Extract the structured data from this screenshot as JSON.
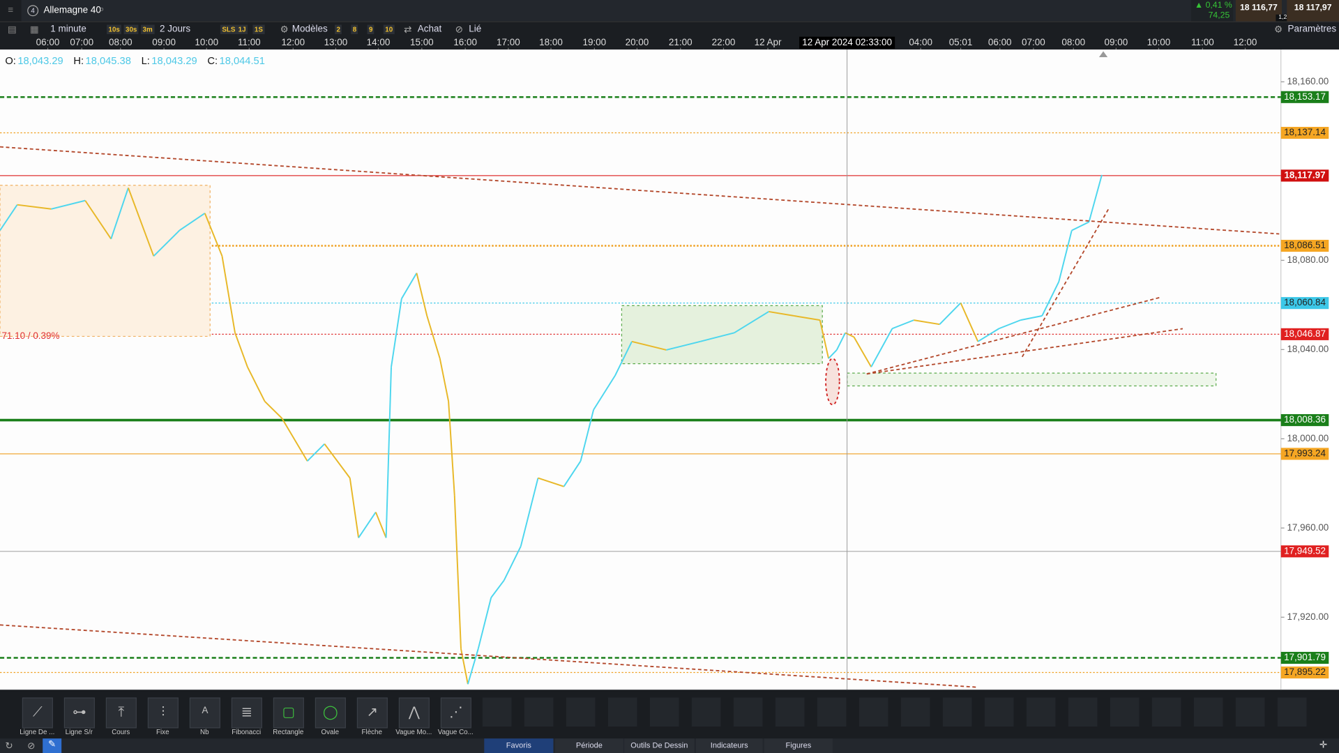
{
  "header": {
    "instrument_number": "4",
    "instrument": "Allemagne 40",
    "change_pct": "0,41 %",
    "change_pts": "74,25",
    "bid": "18 116,77",
    "ask": "18 117,97",
    "spread": "1,20"
  },
  "toolbar": {
    "interval": "1 minute",
    "quick_intervals": [
      "10s",
      "30s",
      "3m"
    ],
    "period": "2 Jours",
    "order_buttons": [
      "SLS",
      "1J",
      "1S"
    ],
    "templates": "Modèles",
    "template_slots": [
      "2",
      "8",
      "9",
      "10"
    ],
    "buy": "Achat",
    "link": "Lié",
    "settings": "Paramètres"
  },
  "ohlc": [
    {
      "label": "O:",
      "value": "18,043.29"
    },
    {
      "label": "H:",
      "value": "18,045.38"
    },
    {
      "label": "L:",
      "value": "18,043.29"
    },
    {
      "label": "C:",
      "value": "18,044.51"
    }
  ],
  "chart_data": {
    "type": "line",
    "annotation": "71.10 / 0.39%",
    "x": [
      0,
      0.4,
      1.19,
      1.98,
      2.58,
      2.98,
      3.57,
      4.17,
      4.76,
      5.16,
      5.46,
      5.75,
      6.15,
      6.55,
      7.14,
      7.54,
      8.13,
      8.33,
      8.73,
      8.97,
      9.09,
      9.33,
      9.68,
      9.92,
      10.22,
      10.42,
      10.56,
      10.71,
      10.87,
      11.11,
      11.41,
      11.71,
      12.1,
      12.5,
      13.1,
      13.49,
      13.79,
      14.29,
      14.68,
      15.48,
      16.27,
      17.06,
      17.86,
      18.45,
      19.05,
      19.25,
      19.44,
      19.64,
      19.84,
      20.24,
      20.73,
      21.23,
      21.83,
      22.32,
      22.72,
      23.21,
      23.71,
      24.21,
      24.6,
      24.9,
      25.3,
      25.6
    ],
    "values": [
      18093.4,
      18104.9,
      18103.0,
      18106.8,
      18089.6,
      18112.5,
      18081.9,
      18093.4,
      18101.1,
      18081.9,
      18047.5,
      18032.2,
      18016.8,
      18009.2,
      17990.0,
      17997.7,
      17982.4,
      17955.6,
      17967.1,
      17955.6,
      18032.2,
      18062.8,
      18074.3,
      18055.1,
      18036.0,
      18016.8,
      17974.7,
      17905.8,
      17890.0,
      17905.8,
      17928.8,
      17936.5,
      17951.8,
      17982.4,
      17978.6,
      17990.0,
      18013.0,
      18028.3,
      18043.6,
      18039.8,
      18043.6,
      18047.5,
      18057.0,
      18055.1,
      18053.2,
      18036.0,
      18039.8,
      18047.5,
      18045.6,
      18032.2,
      18049.4,
      18053.2,
      18051.3,
      18060.9,
      18043.6,
      18049.4,
      18053.2,
      18055.1,
      18070.4,
      18093.4,
      18097.2,
      18118.3
    ],
    "up_color": "#4dd6ee",
    "down_color": "#e8b828",
    "xlim": [
      0,
      29.76
    ],
    "xticks": [
      {
        "value": 1.11,
        "label": "06:00"
      },
      {
        "value": 1.9,
        "label": "07:00"
      },
      {
        "value": 2.8,
        "label": "08:00"
      },
      {
        "value": 3.81,
        "label": "09:00"
      },
      {
        "value": 4.8,
        "label": "10:00"
      },
      {
        "value": 5.79,
        "label": "11:00"
      },
      {
        "value": 6.81,
        "label": "12:00"
      },
      {
        "value": 7.8,
        "label": "13:00"
      },
      {
        "value": 8.79,
        "label": "14:00"
      },
      {
        "value": 9.8,
        "label": "15:00"
      },
      {
        "value": 10.81,
        "label": "16:00"
      },
      {
        "value": 11.81,
        "label": "17:00"
      },
      {
        "value": 12.8,
        "label": "18:00"
      },
      {
        "value": 13.81,
        "label": "19:00"
      },
      {
        "value": 14.8,
        "label": "20:00"
      },
      {
        "value": 15.81,
        "label": "21:00"
      },
      {
        "value": 16.81,
        "label": "22:00"
      },
      {
        "value": 17.84,
        "label": "12 Apr"
      },
      {
        "value": 21.39,
        "label": "04:00"
      },
      {
        "value": 22.32,
        "label": "05:01"
      },
      {
        "value": 23.23,
        "label": "06:00"
      },
      {
        "value": 24.01,
        "label": "07:00"
      },
      {
        "value": 24.94,
        "label": "08:00"
      },
      {
        "value": 25.93,
        "label": "09:00"
      },
      {
        "value": 26.92,
        "label": "10:00"
      },
      {
        "value": 27.94,
        "label": "11:00"
      },
      {
        "value": 28.93,
        "label": "12:00"
      }
    ],
    "ylim": [
      17888.6,
      18174.5
    ],
    "yticks": [
      {
        "value": 17920,
        "label": "17,920.00"
      },
      {
        "value": 17960,
        "label": "17,960.00"
      },
      {
        "value": 18000,
        "label": "18,000.00"
      },
      {
        "value": 18040,
        "label": "18,040.00"
      },
      {
        "value": 18080,
        "label": "18,080.00"
      },
      {
        "value": 18160,
        "label": "18,160.00"
      }
    ],
    "crosshair": {
      "x": 19.68,
      "label": "12 Apr 2024 02:33:00"
    },
    "levels": [
      {
        "value": 18153.17,
        "label": "18,153.17",
        "color": "#1a7f1a",
        "label_color": "#1a7f1a",
        "style": "dashed",
        "width": 2
      },
      {
        "value": 18137.14,
        "label": "18,137.14",
        "color": "#f0a020",
        "label_color": "#f5a623",
        "style": "dotted",
        "width": 1
      },
      {
        "value": 18117.97,
        "label": "18,117.97",
        "color": "#e03030",
        "label_color": "#d01010",
        "style": "solid",
        "width": 1
      },
      {
        "value": 18086.51,
        "label": "18,086.51",
        "color": "#f0a020",
        "label_color": "#f5a623",
        "style": "dotted",
        "width": 2
      },
      {
        "value": 18060.84,
        "label": "18,060.84",
        "color": "#3cc8e8",
        "label_color": "#3cc8e8",
        "style": "dotted",
        "width": 1
      },
      {
        "value": 18046.87,
        "label": "18,046.87",
        "color": "#e03030",
        "label_color": "#e02020",
        "style": "dotted",
        "width": 1
      },
      {
        "value": 18008.36,
        "label": "18,008.36",
        "color": "#1a7f1a",
        "label_color": "#1a7f1a",
        "style": "solid",
        "width": 3
      },
      {
        "value": 17993.24,
        "label": "17,993.24",
        "color": "#f0a020",
        "label_color": "#f5a623",
        "style": "solid",
        "width": 1
      },
      {
        "value": 17949.52,
        "label": "17,949.52",
        "color": "#a8a8a8",
        "label_color": "#e02020",
        "style": "solid",
        "width": 1
      },
      {
        "value": 17901.79,
        "label": "17,901.79",
        "color": "#1a7f1a",
        "label_color": "#1a7f1a",
        "style": "dashed",
        "width": 2
      },
      {
        "value": 17895.22,
        "label": "17,895.22",
        "color": "#f0a020",
        "label_color": "#f5a623",
        "style": "dotted",
        "width": 1
      }
    ]
  },
  "drawing_tools": [
    "Ligne De ...",
    "Ligne S/r",
    "Cours",
    "Fixe",
    "Nb",
    "Fibonacci",
    "Rectangle",
    "Ovale",
    "Flèche",
    "Vague Mo...",
    "Vague Co..."
  ],
  "tabs": [
    "Favoris",
    "Période",
    "Outils De Dessin",
    "Indicateurs",
    "Figures"
  ]
}
